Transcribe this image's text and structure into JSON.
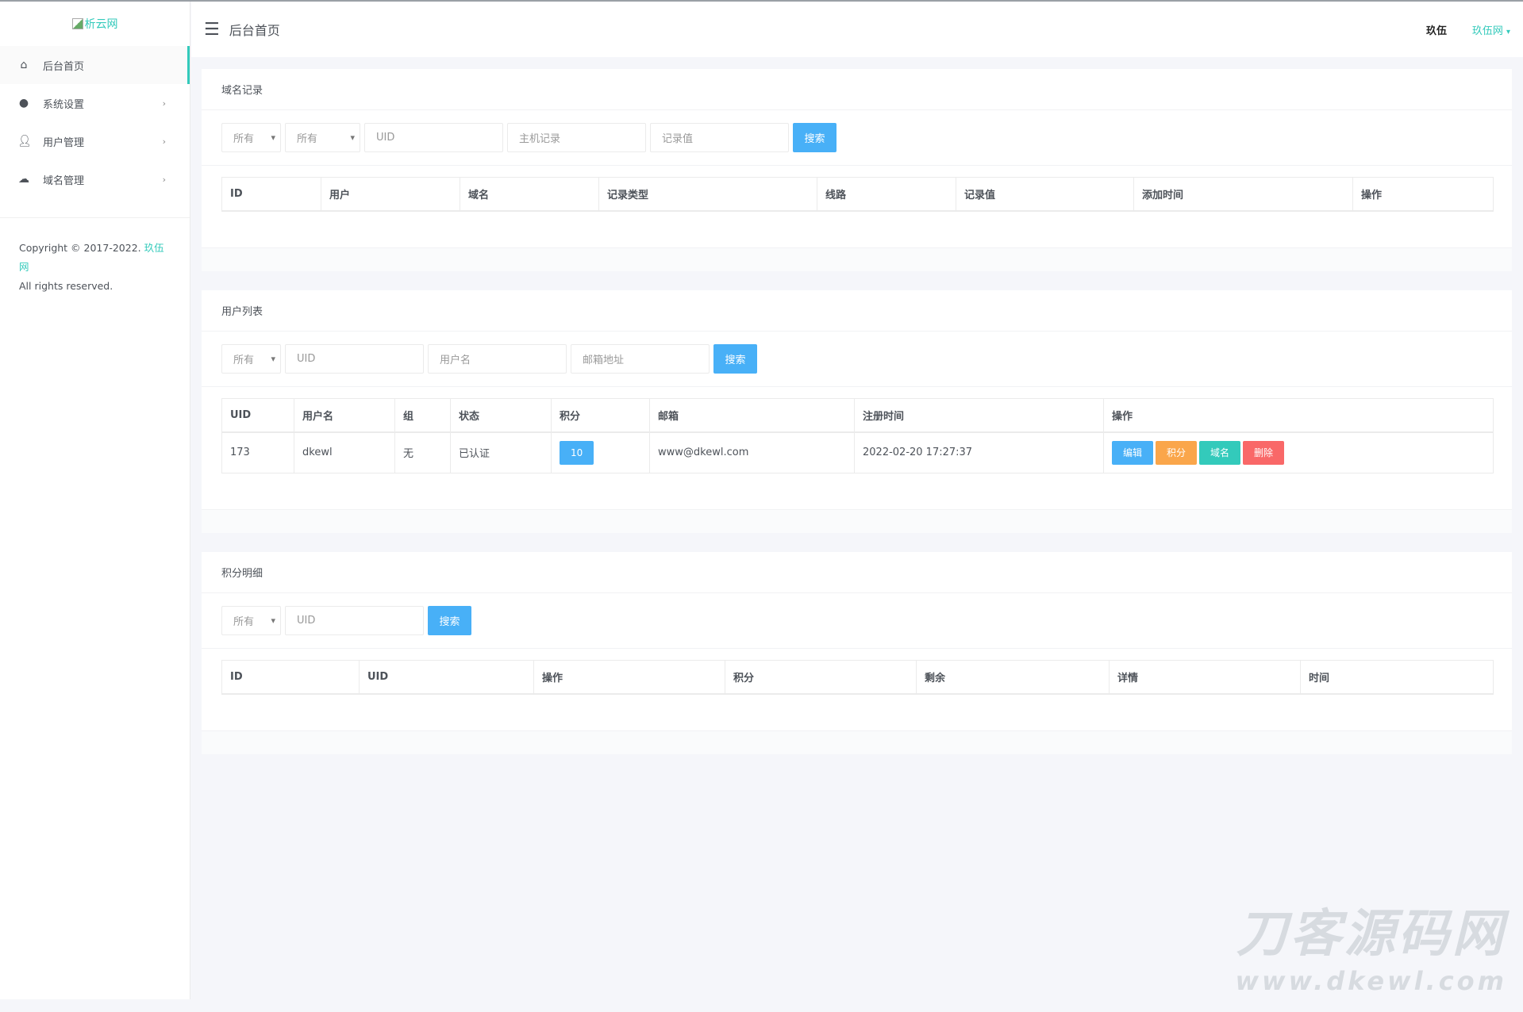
{
  "sidebar": {
    "logo_alt": "析云网",
    "items": [
      {
        "label": "后台首页",
        "icon": "home-icon"
      },
      {
        "label": "系统设置",
        "icon": "palette-icon"
      },
      {
        "label": "用户管理",
        "icon": "user-icon"
      },
      {
        "label": "域名管理",
        "icon": "cloud-icon"
      }
    ],
    "copyright": "Copyright © 2017-2022.",
    "brand": "玖伍网",
    "rights": "All rights reserved."
  },
  "header": {
    "title": "后台首页",
    "username": "玖伍",
    "site": "玖伍网"
  },
  "colors": {
    "accent": "#33cabb",
    "primary": "#48b0f7",
    "warning": "#faa64b",
    "danger": "#f96868"
  },
  "domain_records": {
    "title": "域名记录",
    "filters": {
      "select1": "所有",
      "select2": "所有",
      "uid": "UID",
      "host": "主机记录",
      "value": "记录值",
      "search": "搜索"
    },
    "columns": [
      "ID",
      "用户",
      "域名",
      "记录类型",
      "线路",
      "记录值",
      "添加时间",
      "操作"
    ]
  },
  "user_list": {
    "title": "用户列表",
    "filters": {
      "select1": "所有",
      "uid": "UID",
      "username": "用户名",
      "email": "邮箱地址",
      "search": "搜索"
    },
    "columns": [
      "UID",
      "用户名",
      "组",
      "状态",
      "积分",
      "邮箱",
      "注册时间",
      "操作"
    ],
    "rows": [
      {
        "uid": "173",
        "username": "dkewl",
        "group": "无",
        "status": "已认证",
        "points": "10",
        "email": "www@dkewl.com",
        "registered": "2022-02-20 17:27:37",
        "actions": {
          "edit": "编辑",
          "points": "积分",
          "domain": "域名",
          "delete": "删除"
        }
      }
    ]
  },
  "points_detail": {
    "title": "积分明细",
    "filters": {
      "select1": "所有",
      "uid": "UID",
      "search": "搜索"
    },
    "columns": [
      "ID",
      "UID",
      "操作",
      "积分",
      "剩余",
      "详情",
      "时间"
    ]
  },
  "watermark": {
    "line1": "刀客源码网",
    "line2": "www.dkewl.com"
  }
}
